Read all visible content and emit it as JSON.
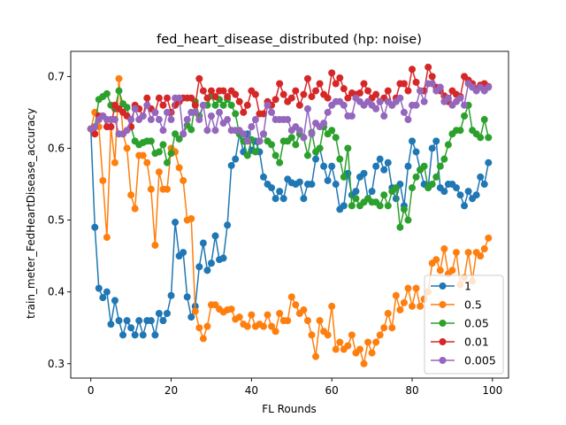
{
  "chart_data": {
    "type": "line",
    "title": "fed_heart_disease_distributed (hp: noise)",
    "xlabel": "FL Rounds",
    "ylabel": "train_meter_FedHeartDisease_accuracy",
    "xlim": [
      -5,
      104
    ],
    "ylim": [
      0.28,
      0.735
    ],
    "xticks": [
      0,
      20,
      40,
      60,
      80,
      100
    ],
    "yticks": [
      0.3,
      0.4,
      0.5,
      0.6,
      0.7
    ],
    "ytick_labels": [
      "0.3",
      "0.4",
      "0.5",
      "0.6",
      "0.7"
    ],
    "grid": false,
    "legend_position": "lower right",
    "x": [
      0,
      1,
      2,
      3,
      4,
      5,
      6,
      7,
      8,
      9,
      10,
      11,
      12,
      13,
      14,
      15,
      16,
      17,
      18,
      19,
      20,
      21,
      22,
      23,
      24,
      25,
      26,
      27,
      28,
      29,
      30,
      31,
      32,
      33,
      34,
      35,
      36,
      37,
      38,
      39,
      40,
      41,
      42,
      43,
      44,
      45,
      46,
      47,
      48,
      49,
      50,
      51,
      52,
      53,
      54,
      55,
      56,
      57,
      58,
      59,
      60,
      61,
      62,
      63,
      64,
      65,
      66,
      67,
      68,
      69,
      70,
      71,
      72,
      73,
      74,
      75,
      76,
      77,
      78,
      79,
      80,
      81,
      82,
      83,
      84,
      85,
      86,
      87,
      88,
      89,
      90,
      91,
      92,
      93,
      94,
      95,
      96,
      97,
      98,
      99
    ],
    "series": [
      {
        "name": "1",
        "color": "#1f77b4",
        "values": [
          0.627,
          0.49,
          0.405,
          0.392,
          0.4,
          0.355,
          0.388,
          0.36,
          0.34,
          0.36,
          0.35,
          0.34,
          0.36,
          0.34,
          0.36,
          0.36,
          0.34,
          0.37,
          0.36,
          0.37,
          0.395,
          0.497,
          0.45,
          0.455,
          0.393,
          0.365,
          0.38,
          0.435,
          0.468,
          0.43,
          0.44,
          0.478,
          0.445,
          0.447,
          0.493,
          0.576,
          0.585,
          0.62,
          0.595,
          0.62,
          0.597,
          0.61,
          0.595,
          0.56,
          0.55,
          0.545,
          0.53,
          0.54,
          0.53,
          0.557,
          0.552,
          0.55,
          0.553,
          0.53,
          0.55,
          0.55,
          0.585,
          0.6,
          0.575,
          0.555,
          0.575,
          0.55,
          0.515,
          0.52,
          0.565,
          0.535,
          0.54,
          0.56,
          0.565,
          0.53,
          0.54,
          0.575,
          0.585,
          0.57,
          0.58,
          0.545,
          0.53,
          0.55,
          0.52,
          0.575,
          0.61,
          0.595,
          0.57,
          0.55,
          0.545,
          0.6,
          0.61,
          0.545,
          0.54,
          0.55,
          0.55,
          0.545,
          0.535,
          0.52,
          0.54,
          0.53,
          0.535,
          0.56,
          0.55,
          0.58
        ]
      },
      {
        "name": "0.5",
        "color": "#ff7f0e",
        "values": [
          0.627,
          0.65,
          0.63,
          0.555,
          0.476,
          0.63,
          0.58,
          0.697,
          0.62,
          0.6,
          0.535,
          0.516,
          0.59,
          0.59,
          0.58,
          0.543,
          0.465,
          0.567,
          0.543,
          0.543,
          0.6,
          0.595,
          0.573,
          0.555,
          0.5,
          0.502,
          0.373,
          0.35,
          0.335,
          0.352,
          0.382,
          0.382,
          0.376,
          0.372,
          0.375,
          0.376,
          0.362,
          0.365,
          0.355,
          0.352,
          0.368,
          0.352,
          0.355,
          0.352,
          0.368,
          0.352,
          0.345,
          0.37,
          0.36,
          0.36,
          0.393,
          0.382,
          0.37,
          0.375,
          0.36,
          0.34,
          0.31,
          0.36,
          0.345,
          0.34,
          0.38,
          0.32,
          0.33,
          0.32,
          0.325,
          0.34,
          0.315,
          0.32,
          0.3,
          0.33,
          0.315,
          0.33,
          0.34,
          0.35,
          0.37,
          0.35,
          0.395,
          0.375,
          0.385,
          0.405,
          0.38,
          0.405,
          0.38,
          0.39,
          0.4,
          0.44,
          0.445,
          0.43,
          0.46,
          0.425,
          0.43,
          0.455,
          0.41,
          0.42,
          0.455,
          0.415,
          0.455,
          0.45,
          0.46,
          0.475
        ]
      },
      {
        "name": "0.05",
        "color": "#2ca02c",
        "values": [
          0.627,
          0.63,
          0.668,
          0.672,
          0.676,
          0.66,
          0.655,
          0.68,
          0.662,
          0.657,
          0.63,
          0.61,
          0.605,
          0.608,
          0.61,
          0.61,
          0.593,
          0.595,
          0.605,
          0.58,
          0.593,
          0.62,
          0.613,
          0.62,
          0.632,
          0.626,
          0.665,
          0.645,
          0.66,
          0.66,
          0.673,
          0.66,
          0.668,
          0.66,
          0.668,
          0.66,
          0.648,
          0.62,
          0.61,
          0.59,
          0.612,
          0.595,
          0.61,
          0.62,
          0.61,
          0.605,
          0.59,
          0.58,
          0.61,
          0.61,
          0.615,
          0.605,
          0.62,
          0.615,
          0.59,
          0.622,
          0.595,
          0.6,
          0.63,
          0.62,
          0.625,
          0.615,
          0.585,
          0.56,
          0.6,
          0.52,
          0.53,
          0.52,
          0.525,
          0.53,
          0.525,
          0.525,
          0.52,
          0.535,
          0.52,
          0.54,
          0.545,
          0.49,
          0.515,
          0.5,
          0.545,
          0.56,
          0.57,
          0.575,
          0.545,
          0.55,
          0.56,
          0.575,
          0.585,
          0.605,
          0.62,
          0.625,
          0.625,
          0.645,
          0.66,
          0.625,
          0.62,
          0.615,
          0.64,
          0.615
        ]
      },
      {
        "name": "0.01",
        "color": "#d62728",
        "values": [
          0.627,
          0.62,
          0.645,
          0.645,
          0.63,
          0.63,
          0.66,
          0.655,
          0.65,
          0.645,
          0.63,
          0.66,
          0.655,
          0.645,
          0.67,
          0.655,
          0.65,
          0.67,
          0.66,
          0.67,
          0.65,
          0.66,
          0.665,
          0.67,
          0.67,
          0.67,
          0.66,
          0.697,
          0.68,
          0.67,
          0.68,
          0.672,
          0.68,
          0.68,
          0.672,
          0.68,
          0.675,
          0.665,
          0.65,
          0.66,
          0.68,
          0.675,
          0.648,
          0.648,
          0.665,
          0.66,
          0.668,
          0.69,
          0.675,
          0.665,
          0.67,
          0.68,
          0.66,
          0.675,
          0.697,
          0.672,
          0.68,
          0.69,
          0.675,
          0.67,
          0.705,
          0.69,
          0.698,
          0.683,
          0.67,
          0.677,
          0.675,
          0.677,
          0.69,
          0.68,
          0.67,
          0.675,
          0.665,
          0.67,
          0.68,
          0.66,
          0.67,
          0.69,
          0.69,
          0.68,
          0.71,
          0.692,
          0.68,
          0.68,
          0.713,
          0.7,
          0.685,
          0.68,
          0.673,
          0.665,
          0.68,
          0.675,
          0.672,
          0.7,
          0.695,
          0.69,
          0.683,
          0.688,
          0.69,
          0.686
        ]
      },
      {
        "name": "0.005",
        "color": "#9467bd",
        "values": [
          0.627,
          0.63,
          0.64,
          0.645,
          0.64,
          0.64,
          0.64,
          0.62,
          0.62,
          0.625,
          0.64,
          0.655,
          0.64,
          0.645,
          0.66,
          0.64,
          0.65,
          0.64,
          0.625,
          0.65,
          0.64,
          0.67,
          0.67,
          0.62,
          0.64,
          0.65,
          0.65,
          0.64,
          0.66,
          0.625,
          0.645,
          0.625,
          0.65,
          0.635,
          0.64,
          0.625,
          0.625,
          0.625,
          0.62,
          0.61,
          0.63,
          0.64,
          0.61,
          0.62,
          0.66,
          0.65,
          0.64,
          0.64,
          0.64,
          0.64,
          0.625,
          0.63,
          0.625,
          0.615,
          0.655,
          0.62,
          0.635,
          0.63,
          0.635,
          0.65,
          0.66,
          0.665,
          0.665,
          0.66,
          0.645,
          0.645,
          0.67,
          0.665,
          0.66,
          0.665,
          0.66,
          0.655,
          0.665,
          0.645,
          0.665,
          0.66,
          0.665,
          0.67,
          0.65,
          0.64,
          0.66,
          0.66,
          0.68,
          0.665,
          0.69,
          0.69,
          0.68,
          0.685,
          0.665,
          0.67,
          0.66,
          0.665,
          0.67,
          0.66,
          0.69,
          0.685,
          0.68,
          0.685,
          0.68,
          0.685
        ]
      }
    ]
  }
}
